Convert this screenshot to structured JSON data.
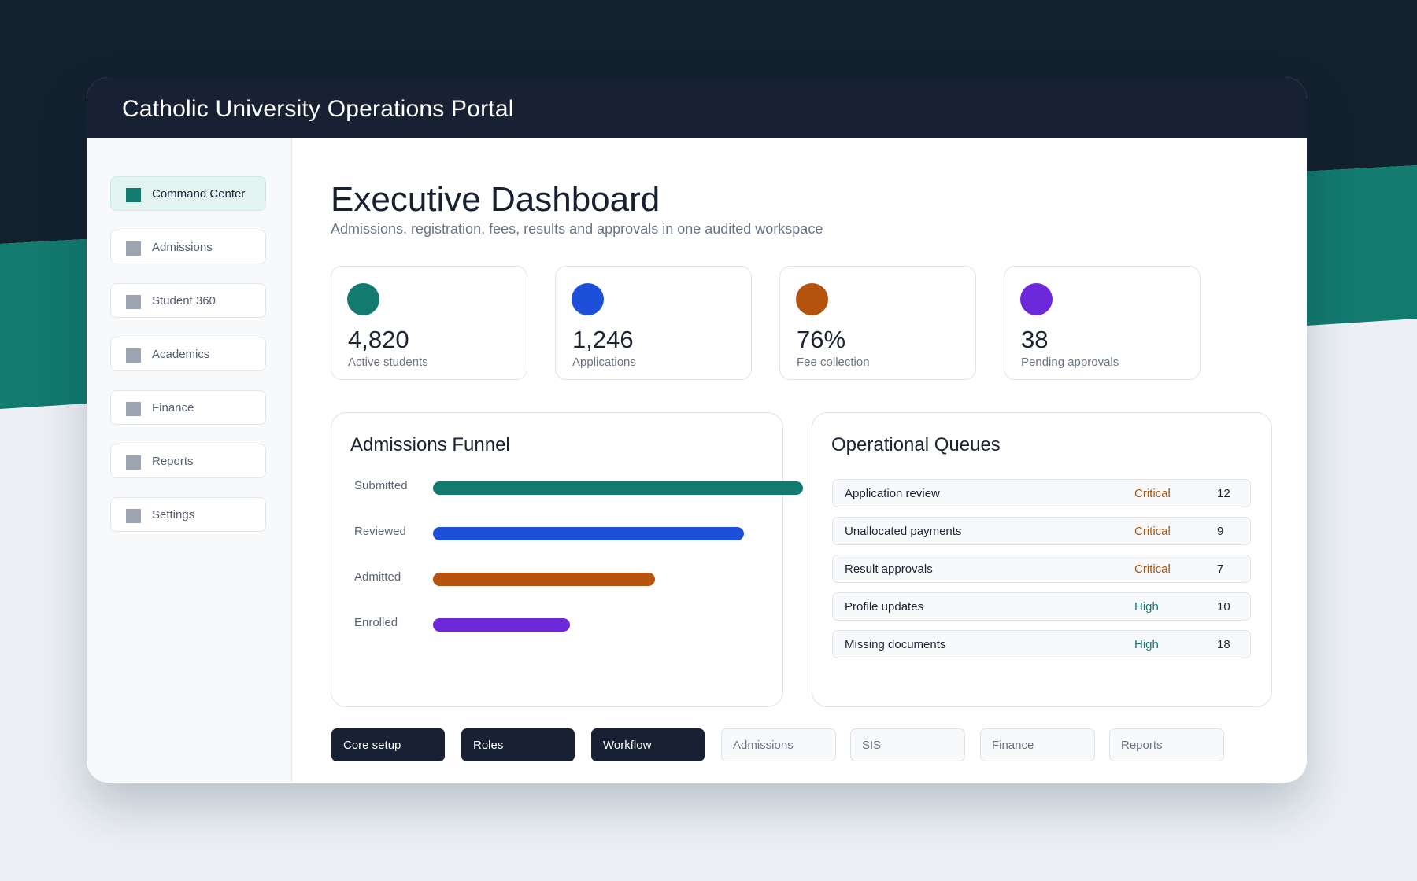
{
  "app": {
    "title": "Catholic University Operations Portal"
  },
  "colors": {
    "teal": "#127a6f",
    "blue": "#1d4fd8",
    "orange": "#b5530e",
    "purple": "#6d28d9",
    "navy": "#182133",
    "critical": "#b5530e",
    "high": "#127a6f"
  },
  "sidebar": {
    "items": [
      {
        "label": "Command Center",
        "icon": "square-icon",
        "active": true
      },
      {
        "label": "Admissions",
        "icon": "square-icon"
      },
      {
        "label": "Student 360",
        "icon": "square-icon"
      },
      {
        "label": "Academics",
        "icon": "square-icon"
      },
      {
        "label": "Finance",
        "icon": "square-icon"
      },
      {
        "label": "Reports",
        "icon": "square-icon"
      },
      {
        "label": "Settings",
        "icon": "square-icon"
      }
    ]
  },
  "header": {
    "title": "Executive Dashboard",
    "subtitle": "Admissions, registration, fees, results and approvals in one audited workspace"
  },
  "kpis": [
    {
      "value": "4,820",
      "label": "Active students",
      "color": "#127a6f"
    },
    {
      "value": "1,246",
      "label": "Applications",
      "color": "#1d4fd8"
    },
    {
      "value": "76%",
      "label": "Fee collection",
      "color": "#b5530e"
    },
    {
      "value": "38",
      "label": "Pending approvals",
      "color": "#6d28d9"
    }
  ],
  "funnel": {
    "title": "Admissions Funnel",
    "stages": [
      {
        "label": "Submitted",
        "share": 1.0,
        "color": "#127a6f"
      },
      {
        "label": "Reviewed",
        "share": 0.84,
        "color": "#1d4fd8"
      },
      {
        "label": "Admitted",
        "share": 0.6,
        "color": "#b5530e"
      },
      {
        "label": "Enrolled",
        "share": 0.37,
        "color": "#6d28d9"
      }
    ]
  },
  "queues": {
    "title": "Operational Queues",
    "rows": [
      {
        "name": "Application review",
        "priority": "Critical",
        "count": "12"
      },
      {
        "name": "Unallocated payments",
        "priority": "Critical",
        "count": "9"
      },
      {
        "name": "Result approvals",
        "priority": "Critical",
        "count": "7"
      },
      {
        "name": "Profile updates",
        "priority": "High",
        "count": "10"
      },
      {
        "name": "Missing documents",
        "priority": "High",
        "count": "18"
      }
    ]
  },
  "modules": {
    "items": [
      {
        "label": "Core setup",
        "style": "dark"
      },
      {
        "label": "Roles",
        "style": "dark"
      },
      {
        "label": "Workflow",
        "style": "dark"
      },
      {
        "label": "Admissions",
        "style": "light"
      },
      {
        "label": "SIS",
        "style": "light"
      },
      {
        "label": "Finance",
        "style": "light"
      },
      {
        "label": "Reports",
        "style": "light"
      }
    ]
  }
}
